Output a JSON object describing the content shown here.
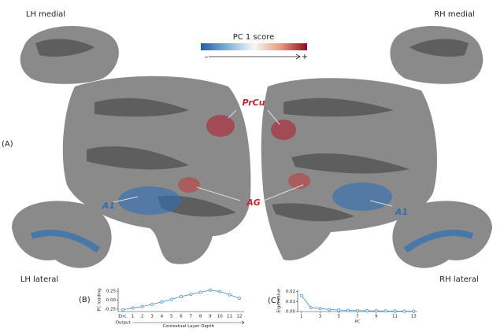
{
  "figure": {
    "panel_a": "(A)",
    "lh_medial": "LH medial",
    "rh_medial": "RH medial",
    "lh_lateral": "LH lateral",
    "rh_lateral": "RH lateral",
    "colorbar_title": "PC 1 score",
    "colorbar_min": "–",
    "colorbar_max": "+",
    "prcu": "PrCu",
    "ag": "AG",
    "a1_left": "A1",
    "a1_right": "A1"
  },
  "chart_data": [
    {
      "type": "line",
      "panel": "(B)",
      "ylabel": "PC loading",
      "xlabel": "Contextual Layer Depth",
      "categories": [
        "Enc.",
        "1",
        "2",
        "3",
        "4",
        "5",
        "6",
        "7",
        "8",
        "9",
        "10",
        "11",
        "12"
      ],
      "category_sublabel": "Output",
      "values": [
        -0.27,
        -0.22,
        -0.18,
        -0.12,
        -0.05,
        0.02,
        0.1,
        0.16,
        0.22,
        0.28,
        0.24,
        0.15,
        0.05
      ],
      "color": "#3b8fc4",
      "ylim": [
        -0.32,
        0.34
      ],
      "yticks": [
        -0.25,
        {
          "value": 0,
          "label": "0.00"
        },
        0.25
      ]
    },
    {
      "type": "line",
      "panel": "(C)",
      "ylabel": "Eigenvalue",
      "xlabel": "PC",
      "x": [
        1,
        2,
        3,
        4,
        5,
        6,
        7,
        8,
        9,
        10,
        11,
        12,
        13
      ],
      "values": [
        0.016,
        0.004,
        0.003,
        0.002,
        0.0015,
        0.0012,
        0.001,
        0.0008,
        0.0007,
        0.0006,
        0.0005,
        0.0004,
        0.0003
      ],
      "color": "#3b8fc4",
      "xlim": [
        0.6,
        13.4
      ],
      "xticks": [
        1,
        3,
        5,
        7,
        9,
        11,
        13
      ],
      "ylim": [
        0,
        0.022
      ],
      "yticks": [
        {
          "value": 0,
          "label": "0.00"
        },
        0.01,
        0.02
      ]
    }
  ]
}
